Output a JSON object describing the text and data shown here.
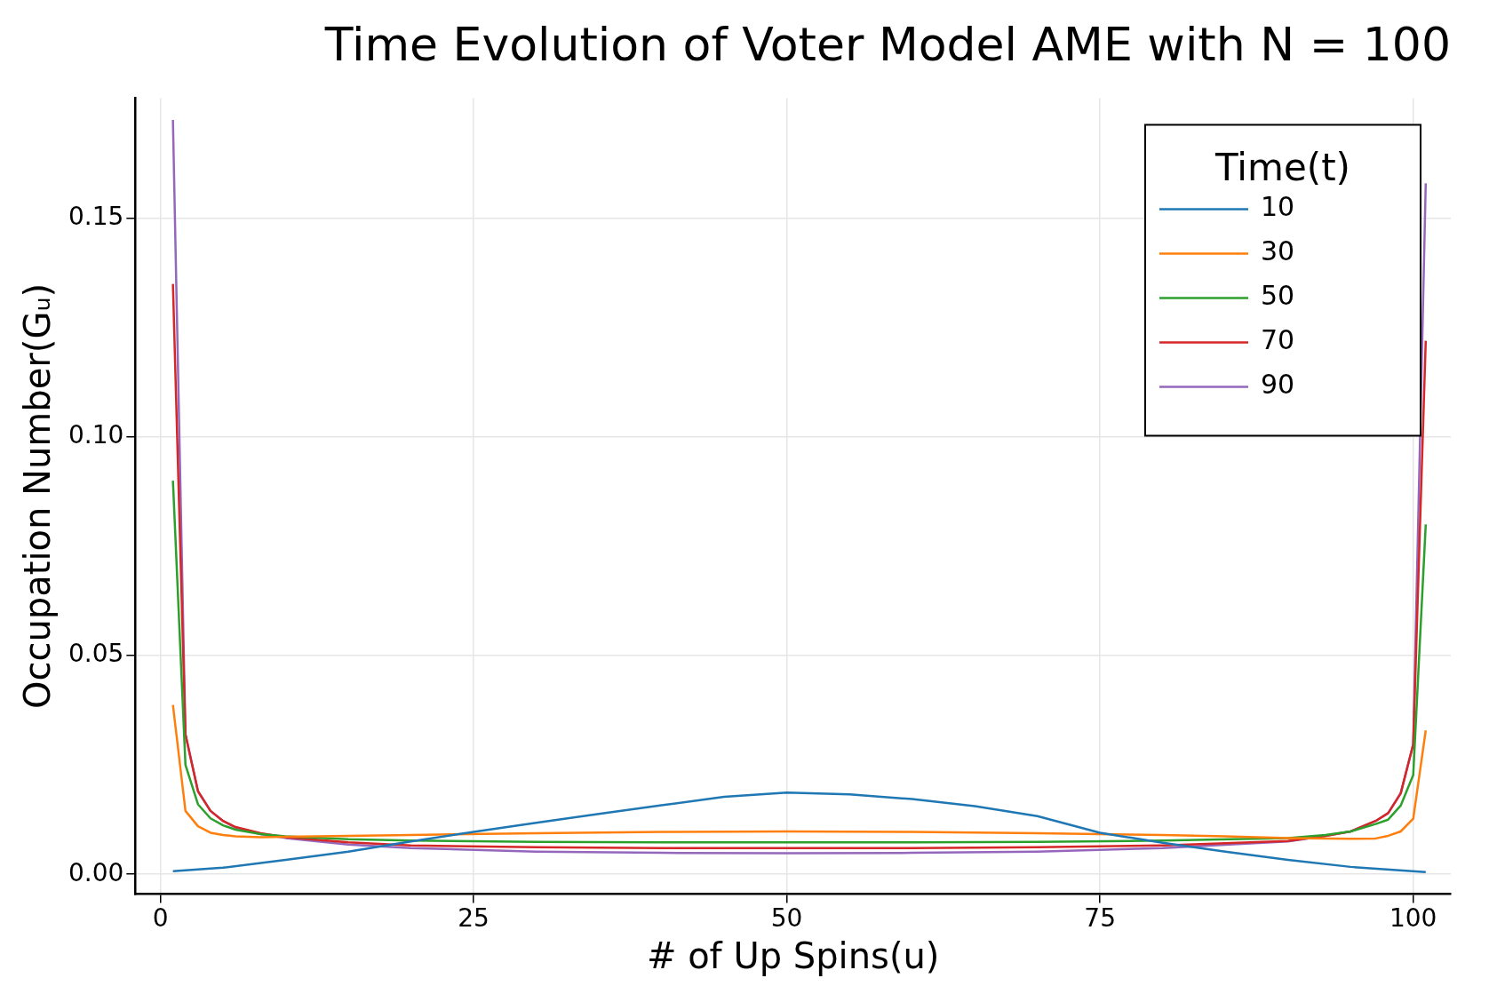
{
  "chart_data": {
    "type": "line",
    "title": "Time Evolution of Voter Model AME with N = 100",
    "xlabel": "# of Up Spins(u)",
    "ylabel": "Occupation Number(Gᵤ)",
    "legend_title": "Time(t)",
    "legend": "top right",
    "grid": true,
    "xlim": [
      -2,
      103
    ],
    "xticks": [
      0,
      25,
      50,
      75,
      100
    ],
    "ylim": [
      -0.0045,
      0.1775
    ],
    "yticks": [
      {
        "value": 0,
        "label": "0.00"
      },
      {
        "value": 0.05,
        "label": "0.05"
      },
      {
        "value": 0.1,
        "label": "0.10"
      },
      {
        "value": 0.15,
        "label": "0.15"
      }
    ],
    "series": [
      {
        "name": "10",
        "color": "#1f77b4",
        "x": [
          1,
          5,
          10,
          15,
          20,
          25,
          30,
          35,
          40,
          45,
          50,
          55,
          60,
          65,
          70,
          75,
          80,
          85,
          90,
          95,
          101
        ],
        "values": [
          0.0007,
          0.0015,
          0.0033,
          0.0052,
          0.0075,
          0.0097,
          0.0118,
          0.0138,
          0.0158,
          0.0177,
          0.0187,
          0.0183,
          0.0172,
          0.0156,
          0.0133,
          0.0095,
          0.0072,
          0.0052,
          0.0033,
          0.0017,
          0.0005
        ]
      },
      {
        "name": "30",
        "color": "#ff7f0e",
        "x": [
          1,
          2,
          3,
          4,
          5,
          6,
          8,
          10,
          15,
          20,
          30,
          40,
          50,
          60,
          70,
          80,
          85,
          90,
          95,
          97,
          98,
          99,
          100,
          101
        ],
        "values": [
          0.0387,
          0.0145,
          0.011,
          0.0095,
          0.009,
          0.0087,
          0.0085,
          0.0086,
          0.0088,
          0.009,
          0.0094,
          0.0097,
          0.0098,
          0.0097,
          0.0094,
          0.009,
          0.0087,
          0.0083,
          0.0081,
          0.0082,
          0.0088,
          0.0098,
          0.0127,
          0.0329
        ]
      },
      {
        "name": "50",
        "color": "#2ca02c",
        "x": [
          1,
          2,
          3,
          4,
          5,
          6,
          8,
          10,
          15,
          20,
          30,
          40,
          50,
          60,
          70,
          80,
          90,
          93,
          95,
          97,
          98,
          99,
          100,
          101
        ],
        "values": [
          0.09,
          0.025,
          0.016,
          0.0128,
          0.0112,
          0.0102,
          0.0092,
          0.0087,
          0.008,
          0.0077,
          0.0074,
          0.0073,
          0.0073,
          0.0073,
          0.0074,
          0.0077,
          0.0083,
          0.009,
          0.0098,
          0.0115,
          0.0125,
          0.0157,
          0.0227,
          0.08
        ]
      },
      {
        "name": "70",
        "color": "#d62728",
        "x": [
          1,
          2,
          3,
          4,
          5,
          6,
          8,
          10,
          15,
          20,
          30,
          40,
          50,
          60,
          70,
          80,
          90,
          93,
          95,
          97,
          98,
          99,
          100,
          101
        ],
        "values": [
          0.135,
          0.032,
          0.019,
          0.0145,
          0.0122,
          0.0108,
          0.0094,
          0.0085,
          0.0073,
          0.0066,
          0.0062,
          0.006,
          0.006,
          0.006,
          0.0062,
          0.0066,
          0.0076,
          0.0088,
          0.0098,
          0.0122,
          0.014,
          0.0185,
          0.0297,
          0.122
        ]
      },
      {
        "name": "90",
        "color": "#9467bd",
        "x": [
          1,
          2,
          3,
          4,
          5,
          6,
          8,
          10,
          15,
          20,
          30,
          40,
          50,
          60,
          70,
          80,
          90,
          93,
          95,
          97,
          98,
          99,
          100,
          101
        ],
        "values": [
          0.1725,
          0.032,
          0.019,
          0.0145,
          0.0122,
          0.0107,
          0.0092,
          0.0083,
          0.0068,
          0.006,
          0.0052,
          0.0049,
          0.0048,
          0.0049,
          0.0052,
          0.006,
          0.0075,
          0.0088,
          0.0098,
          0.0122,
          0.014,
          0.0185,
          0.0297,
          0.158
        ]
      }
    ]
  }
}
